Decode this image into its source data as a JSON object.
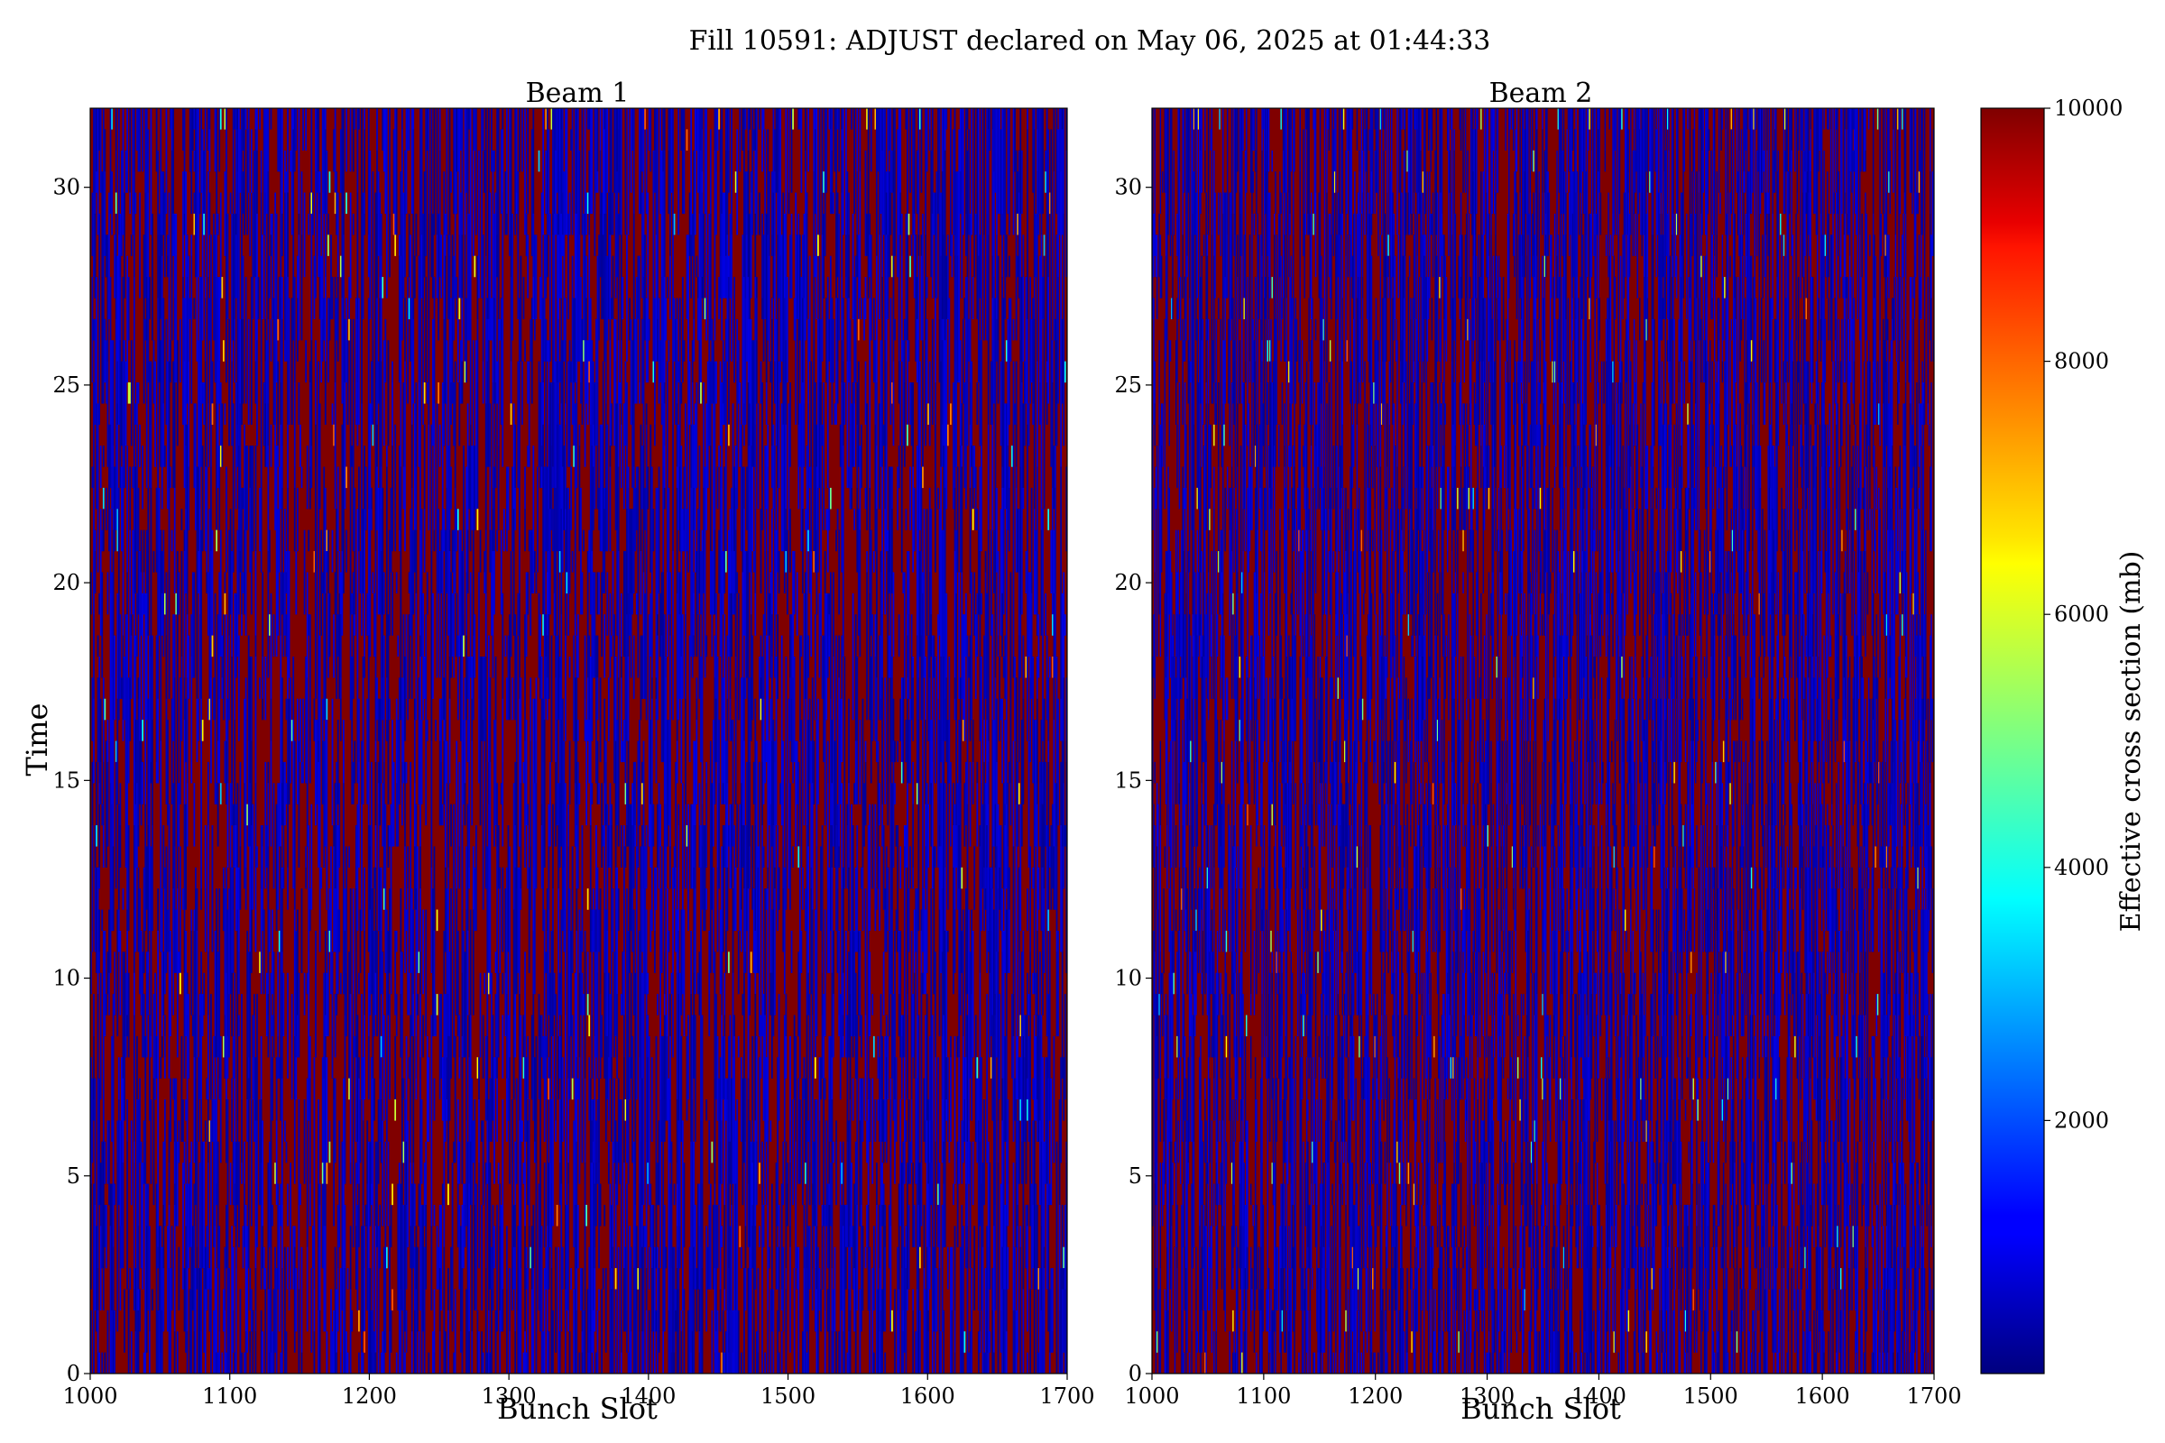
{
  "figure": {
    "suptitle": "Fill 10591: ADJUST declared on May 06, 2025 at 01:44:33"
  },
  "chart_data": [
    {
      "type": "heatmap",
      "title": "Beam 1",
      "xlabel": "Bunch Slot",
      "ylabel": "Time",
      "xlim": [
        1000,
        1700
      ],
      "ylim": [
        0,
        32
      ],
      "xticks": [
        1000,
        1100,
        1200,
        1300,
        1400,
        1500,
        1600,
        1700
      ],
      "yticks": [
        0,
        5,
        10,
        15,
        20,
        25,
        30
      ],
      "z_description": "effective cross section per bunch slot over time; values mostly near 0 (dark blue) or saturated at 10000 (dark red)",
      "vmin": 0,
      "vmax": 10000
    },
    {
      "type": "heatmap",
      "title": "Beam 2",
      "xlabel": "Bunch Slot",
      "ylabel": "",
      "xlim": [
        1000,
        1700
      ],
      "ylim": [
        0,
        32
      ],
      "xticks": [
        1000,
        1100,
        1200,
        1300,
        1400,
        1500,
        1600,
        1700
      ],
      "yticks": [
        0,
        5,
        10,
        15,
        20,
        25,
        30
      ],
      "z_description": "effective cross section per bunch slot over time; values mostly near 0 (dark blue) or saturated at 10000 (dark red)",
      "vmin": 0,
      "vmax": 10000
    }
  ],
  "colorbar": {
    "label": "Effective cross section (mb)",
    "colormap": "jet",
    "vmin": 0,
    "vmax": 10000,
    "ticks": [
      2000,
      4000,
      6000,
      8000,
      10000
    ]
  },
  "colors": {
    "high": "#800000",
    "low": "#00008f"
  }
}
